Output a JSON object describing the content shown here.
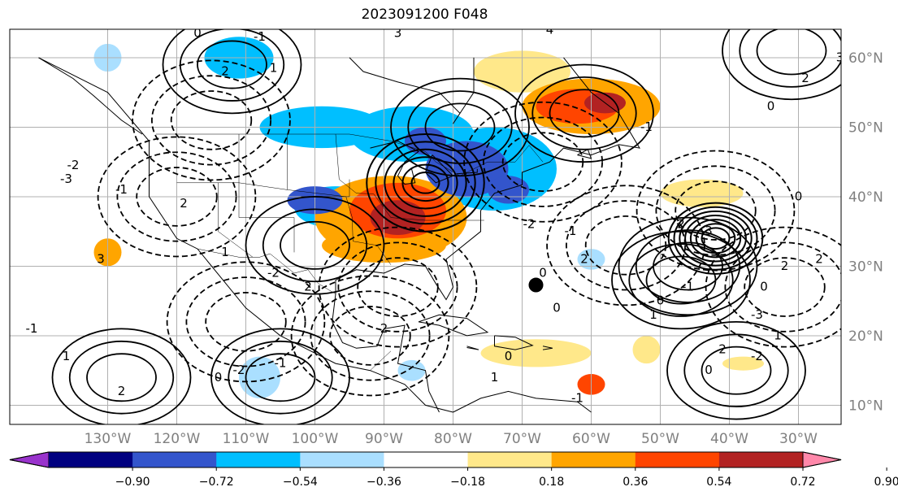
{
  "title": "2023091200 F048",
  "map": {
    "lon_ticks": [
      "130°W",
      "120°W",
      "110°W",
      "100°W",
      "90°W",
      "80°W",
      "70°W",
      "60°W",
      "50°W",
      "40°W",
      "30°W"
    ],
    "lat_ticks": [
      "10°N",
      "20°N",
      "30°N",
      "40°N",
      "50°N",
      "60°N"
    ],
    "tick_color": "#808080",
    "marker": {
      "name": "black-dot",
      "lon": -68,
      "lat": 27.3
    }
  },
  "contours": {
    "color": "#000000",
    "labels": [
      "0",
      "-1",
      "1",
      "2",
      "3",
      "4",
      "-2",
      "-3",
      "-1",
      "2",
      "3",
      "-2",
      "2",
      "1",
      "-1",
      "1",
      "2",
      "-2",
      "0",
      "-1",
      "2",
      "1",
      "-1",
      "0",
      "0",
      "0",
      "-2",
      "-1",
      "2",
      "0",
      "-1",
      "3",
      "2",
      "1",
      "2",
      "-2",
      "0",
      "1",
      "-3",
      "0",
      "2",
      "4",
      "3",
      "2",
      "1",
      "-1",
      "0",
      "-3",
      "0",
      "2"
    ]
  },
  "colorbar": {
    "labels": [
      "−0.90",
      "−0.72",
      "−0.54",
      "−0.36",
      "−0.18",
      "0.18",
      "0.36",
      "0.54",
      "0.72",
      "0.90"
    ],
    "colors": [
      "#9933cc",
      "#000080",
      "#3355cc",
      "#00bfff",
      "#aadfff",
      "#ffffff",
      "#ffe88a",
      "#ffa500",
      "#ff4500",
      "#b22222",
      "#ff88aa"
    ]
  }
}
